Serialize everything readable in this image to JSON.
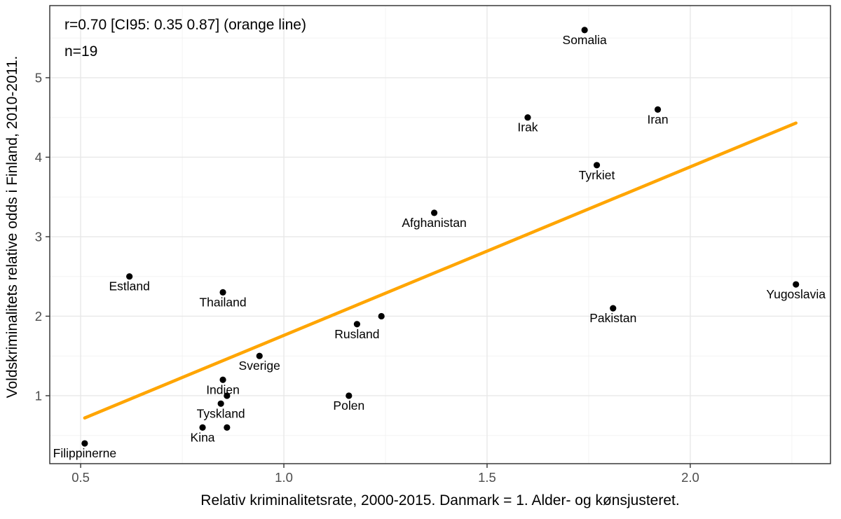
{
  "chart_data": {
    "type": "scatter",
    "title": "",
    "xlabel": "Relativ kriminalitetsrate, 2000-2015. Danmark = 1. Alder- og kønsjusteret.",
    "ylabel": "Voldskriminalitets relative odds i Finland, 2010-2011.",
    "annotation": {
      "line1": "r=0.70 [CI95: 0.35 0.87] (orange line)",
      "line2": "n=19"
    },
    "n": 19,
    "x_range": [
      0.424,
      2.345
    ],
    "y_range": [
      0.145,
      5.907
    ],
    "x_ticks": [
      0.5,
      1.0,
      1.5,
      2.0
    ],
    "x_tick_labels": [
      "0.5",
      "1.0",
      "1.5",
      "2.0"
    ],
    "x_minor_ticks": [
      0.75,
      1.25,
      1.75,
      2.25
    ],
    "y_ticks": [
      1,
      2,
      3,
      4,
      5
    ],
    "y_tick_labels": [
      "1",
      "2",
      "3",
      "4",
      "5"
    ],
    "y_minor_ticks": [
      0.5,
      1.5,
      2.5,
      3.5,
      4.5,
      5.5
    ],
    "grid": true,
    "legend": "none",
    "points": [
      {
        "label": "Somalia",
        "x": 1.74,
        "y": 5.6
      },
      {
        "label": "Irak",
        "x": 1.6,
        "y": 4.5
      },
      {
        "label": "Iran",
        "x": 1.92,
        "y": 4.6
      },
      {
        "label": "Tyrkiet",
        "x": 1.77,
        "y": 3.9
      },
      {
        "label": "Afghanistan",
        "x": 1.37,
        "y": 3.3
      },
      {
        "label": "Estland",
        "x": 0.62,
        "y": 2.5
      },
      {
        "label": "Thailand",
        "x": 0.85,
        "y": 2.3
      },
      {
        "label": "Yugoslavia",
        "x": 2.26,
        "y": 2.4
      },
      {
        "label": "Pakistan",
        "x": 1.81,
        "y": 2.1
      },
      {
        "label": "",
        "x": 1.24,
        "y": 2.0
      },
      {
        "label": "Rusland",
        "x": 1.18,
        "y": 1.9
      },
      {
        "label": "Sverige",
        "x": 0.94,
        "y": 1.5
      },
      {
        "label": "Indien",
        "x": 0.85,
        "y": 1.2
      },
      {
        "label": "",
        "x": 0.86,
        "y": 1.0
      },
      {
        "label": "Polen",
        "x": 1.16,
        "y": 1.0
      },
      {
        "label": "Tyskland",
        "x": 0.845,
        "y": 0.9
      },
      {
        "label": "Kina",
        "x": 0.8,
        "y": 0.6
      },
      {
        "label": "",
        "x": 0.86,
        "y": 0.6
      },
      {
        "label": "Filippinerne",
        "x": 0.51,
        "y": 0.4
      }
    ],
    "trend_line": {
      "x1": 0.51,
      "y1": 0.72,
      "x2": 2.26,
      "y2": 4.43
    },
    "colors": {
      "point": "#000000",
      "point_label": "#000000",
      "trend": "#FFA500",
      "grid_major": "#E8E8E8",
      "grid_minor": "#F3F3F3",
      "panel_border": "#2b2b2b",
      "tick": "#333333",
      "tick_label": "#4d4d4d",
      "title_text": "#000000",
      "background": "#FFFFFF"
    }
  }
}
